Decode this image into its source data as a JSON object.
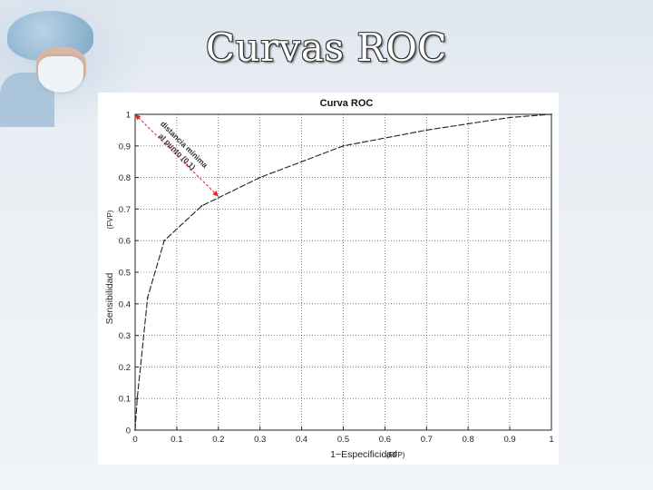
{
  "slide": {
    "title": "Curvas ROC"
  },
  "chart_data": {
    "type": "line",
    "title": "Curva ROC",
    "xlabel": "1−Especificidad",
    "xlabel_note": "(FFP)",
    "ylabel": "Sensibilidad",
    "ylabel_note": "(FVP)",
    "xlim": [
      0,
      1
    ],
    "ylim": [
      0,
      1
    ],
    "xticks": [
      0,
      0.1,
      0.2,
      0.3,
      0.4,
      0.5,
      0.6,
      0.7,
      0.8,
      0.9,
      1
    ],
    "yticks": [
      0,
      0.1,
      0.2,
      0.3,
      0.4,
      0.5,
      0.6,
      0.7,
      0.8,
      0.9,
      1
    ],
    "xtick_labels": [
      "0",
      "0.1",
      "0.2",
      "0.3",
      "0.4",
      "0.5",
      "0.6",
      "0.7",
      "0.8",
      "0.9",
      "1"
    ],
    "ytick_labels": [
      "0",
      "0.1",
      "0.2",
      "0.3",
      "0.4",
      "0.5",
      "0.6",
      "0.7",
      "0.8",
      "0.9",
      "1"
    ],
    "grid": true,
    "series": [
      {
        "x": [
          0,
          0.005,
          0.03,
          0.07,
          0.16,
          0.3,
          0.5,
          0.7,
          0.9,
          1.0
        ],
        "y": [
          0,
          0.1,
          0.42,
          0.6,
          0.71,
          0.8,
          0.9,
          0.95,
          0.99,
          1.0
        ],
        "color": "#222222"
      }
    ],
    "annotation": {
      "line_from": [
        0,
        1
      ],
      "line_to": [
        0.2,
        0.74
      ],
      "line_color": "#dd2222",
      "lines": [
        "distancia mínima",
        "al punto (0,1)"
      ]
    }
  }
}
